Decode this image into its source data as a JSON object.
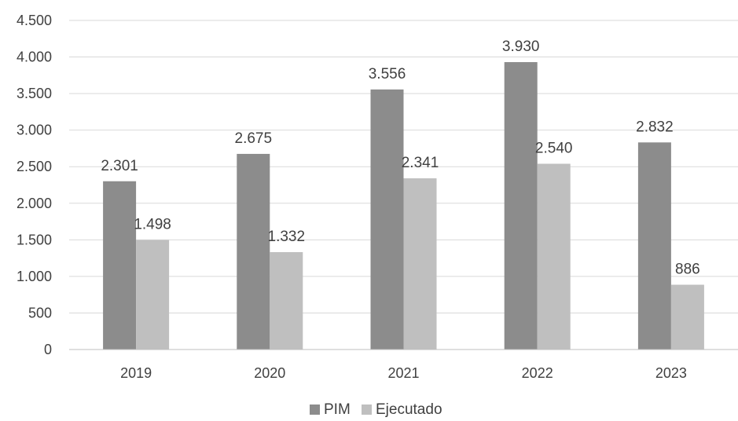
{
  "chart_data": {
    "type": "bar",
    "title": "",
    "xlabel": "",
    "ylabel": "",
    "categories": [
      "2019",
      "2020",
      "2021",
      "2022",
      "2023"
    ],
    "series": [
      {
        "name": "PIM",
        "values": [
          2301,
          2675,
          3556,
          3930,
          2832
        ],
        "labels": [
          "2.301",
          "2.675",
          "3.556",
          "3.930",
          "2.832"
        ],
        "color": "#8c8c8c"
      },
      {
        "name": "Ejecutado",
        "values": [
          1498,
          1332,
          2341,
          2540,
          886
        ],
        "labels": [
          "1.498",
          "1.332",
          "2.341",
          "2.540",
          "886"
        ],
        "color": "#bfbfbf"
      }
    ],
    "ylim": [
      0,
      4500
    ],
    "yticks": [
      0,
      500,
      1000,
      1500,
      2000,
      2500,
      3000,
      3500,
      4000,
      4500
    ],
    "ytick_labels": [
      "0",
      "500",
      "1.000",
      "1.500",
      "2.000",
      "2.500",
      "3.000",
      "3.500",
      "4.000",
      "4.500"
    ],
    "grid": true,
    "legend_position": "bottom-center"
  }
}
